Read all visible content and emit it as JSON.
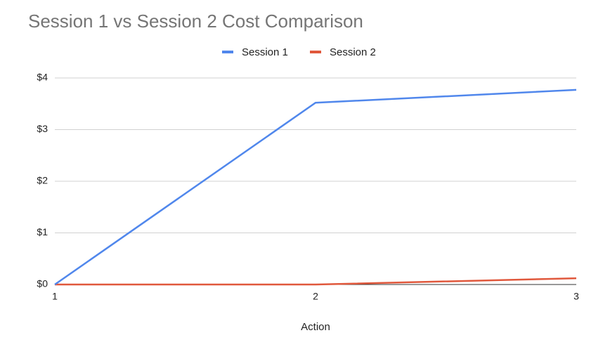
{
  "chart_data": {
    "type": "line",
    "title": "Session 1 vs Session 2 Cost Comparison",
    "x_label": "Action",
    "x": [
      1,
      2,
      3
    ],
    "series": [
      {
        "name": "Session 1",
        "color": "#5087ec",
        "values": [
          0,
          3.52,
          3.77
        ]
      },
      {
        "name": "Session 2",
        "color": "#e0583c",
        "values": [
          0,
          0,
          0.12
        ]
      }
    ],
    "xlim": [
      1,
      3
    ],
    "xticks": [
      1,
      2,
      3
    ],
    "ylim": [
      0,
      4
    ],
    "yticks": [
      {
        "value": 0,
        "label": "$0"
      },
      {
        "value": 1,
        "label": "$1"
      },
      {
        "value": 2,
        "label": "$2"
      },
      {
        "value": 3,
        "label": "$3"
      },
      {
        "value": 4,
        "label": "$4"
      }
    ],
    "grid": true,
    "legend": "top"
  }
}
